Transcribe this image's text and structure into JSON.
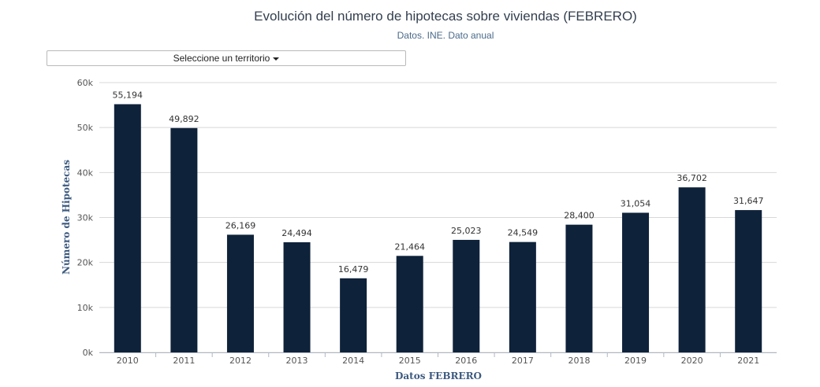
{
  "header": {
    "title": "Evolución del número de hipotecas sobre viviendas (FEBRERO)",
    "subtitle": "Datos. INE. Dato anual"
  },
  "selector": {
    "label": "Seleccione un territorio",
    "icon": "caret-down-icon"
  },
  "colors": {
    "bar": "#0e223a",
    "grid": "#d8d8d8",
    "axis_title": "#3d5a80"
  },
  "chart_data": {
    "type": "bar",
    "title": "Evolución del número de hipotecas sobre viviendas (FEBRERO)",
    "subtitle": "Datos. INE. Dato anual",
    "xlabel": "Datos FEBRERO",
    "ylabel": "Número de Hipotecas",
    "categories": [
      "2010",
      "2011",
      "2012",
      "2013",
      "2014",
      "2015",
      "2016",
      "2017",
      "2018",
      "2019",
      "2020",
      "2021"
    ],
    "values": [
      55194,
      49892,
      26169,
      24494,
      16479,
      21464,
      25023,
      24549,
      28400,
      31054,
      36702,
      31647
    ],
    "data_labels": [
      "55,194",
      "49,892",
      "26,169",
      "24,494",
      "16,479",
      "21,464",
      "25,023",
      "24,549",
      "28,400",
      "31,054",
      "36,702",
      "31,647"
    ],
    "ylim": [
      0,
      60000
    ],
    "yticks": [
      0,
      10000,
      20000,
      30000,
      40000,
      50000,
      60000
    ],
    "ytick_labels": [
      "0k",
      "10k",
      "20k",
      "30k",
      "40k",
      "50k",
      "60k"
    ],
    "grid": true,
    "legend": "none"
  }
}
